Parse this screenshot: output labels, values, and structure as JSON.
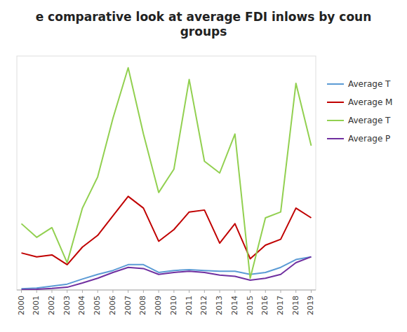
{
  "chart_data": {
    "type": "line",
    "title": "e comparative look at average FDI inlows by coun\ngroups",
    "x": [
      2000,
      2001,
      2002,
      2003,
      2004,
      2005,
      2006,
      2007,
      2008,
      2009,
      2010,
      2011,
      2012,
      2013,
      2014,
      2015,
      2016,
      2017,
      2018,
      2019
    ],
    "xlim": [
      1999.7,
      2019.3
    ],
    "xticks": [
      2000,
      2001,
      2002,
      2003,
      2004,
      2005,
      2006,
      2007,
      2008,
      2009,
      2010,
      2011,
      2012,
      2013,
      2014,
      2015,
      2016,
      2017,
      2018,
      2019
    ],
    "ylim": [
      0,
      60
    ],
    "yticks": [],
    "grid": false,
    "tick_labels": "x",
    "legend": "right",
    "series": [
      {
        "name": "Average T",
        "color": "#5B9BD5",
        "values": [
          0.3,
          0.5,
          1.0,
          1.5,
          2.8,
          4.0,
          5.0,
          6.5,
          6.5,
          4.5,
          5.0,
          5.2,
          5.0,
          4.8,
          4.8,
          4.0,
          4.5,
          5.8,
          7.8,
          8.5
        ]
      },
      {
        "name": "Average M",
        "color": "#C00000",
        "values": [
          9.5,
          8.5,
          9.0,
          6.5,
          11.0,
          14.0,
          19.0,
          24.0,
          21.0,
          12.5,
          15.5,
          20.0,
          20.5,
          12.0,
          17.0,
          8.0,
          11.5,
          13.0,
          21.0,
          18.5
        ]
      },
      {
        "name": "Average T",
        "color": "#92D050",
        "values": [
          17.0,
          13.5,
          16.0,
          7.0,
          21.0,
          29.0,
          44.0,
          57.0,
          40.0,
          25.0,
          31.0,
          54.0,
          33.0,
          30.0,
          40.0,
          3.0,
          18.5,
          20.0,
          53.0,
          37.0
        ]
      },
      {
        "name": "Average P",
        "color": "#7030A0",
        "values": [
          0.1,
          0.2,
          0.4,
          0.7,
          1.8,
          3.0,
          4.5,
          5.8,
          5.5,
          4.0,
          4.5,
          4.8,
          4.5,
          3.8,
          3.5,
          2.5,
          3.0,
          4.0,
          7.0,
          8.5
        ]
      }
    ]
  }
}
